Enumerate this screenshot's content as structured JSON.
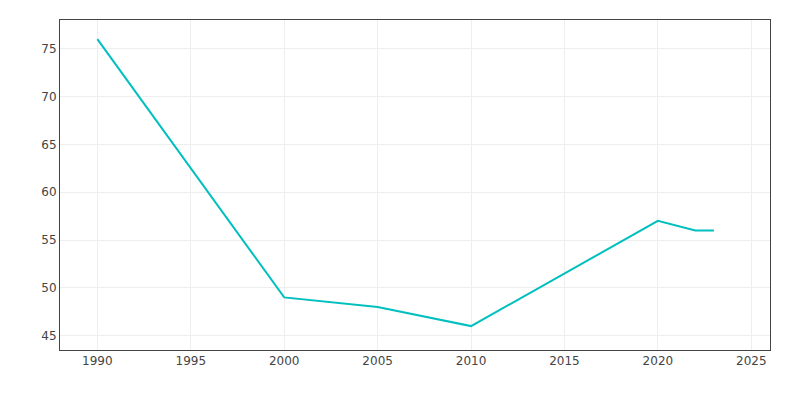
{
  "chart_data": {
    "type": "line",
    "x": [
      1990,
      2000,
      2005,
      2010,
      2020,
      2022,
      2023
    ],
    "values": [
      76,
      49,
      48,
      46,
      57,
      56,
      56
    ],
    "color": "#00BFBF",
    "xlim": [
      1988,
      2026
    ],
    "ylim": [
      43.5,
      78
    ],
    "xticks": [
      1990,
      1995,
      2000,
      2005,
      2010,
      2015,
      2020,
      2025
    ],
    "yticks": [
      45,
      50,
      55,
      60,
      65,
      70,
      75
    ],
    "grid": true
  }
}
